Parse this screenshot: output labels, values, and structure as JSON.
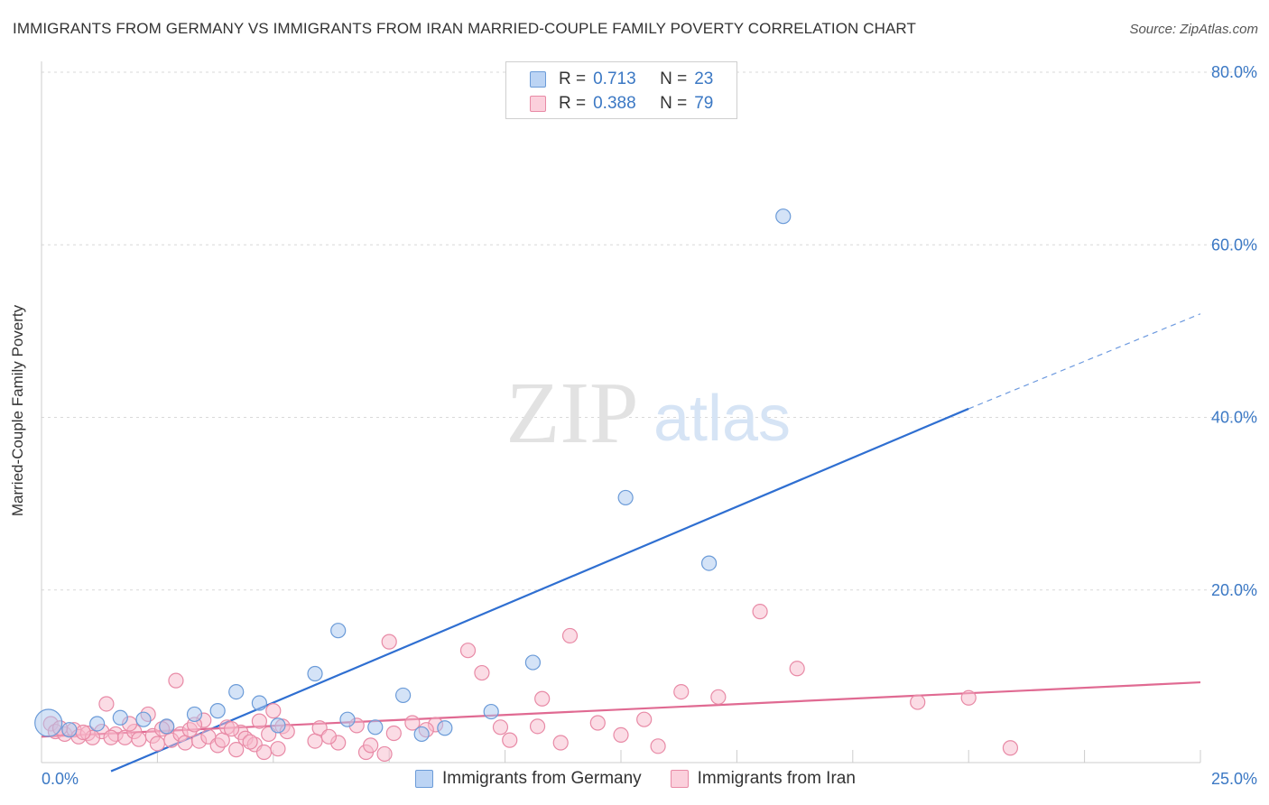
{
  "title": "IMMIGRANTS FROM GERMANY VS IMMIGRANTS FROM IRAN MARRIED-COUPLE FAMILY POVERTY CORRELATION CHART",
  "source": "Source: ZipAtlas.com",
  "watermark": {
    "zip": "ZIP",
    "atlas": "atlas"
  },
  "legend": {
    "r_label": "R =",
    "n_label": "N =",
    "rows": [
      {
        "r": "0.713",
        "n": "23",
        "color": "#a9c8f0"
      },
      {
        "r": "0.388",
        "n": "79",
        "color": "#f7b9cb"
      }
    ]
  },
  "bottom_legend": [
    "Immigrants from Germany",
    "Immigrants from Iran"
  ],
  "chart_data": {
    "type": "scatter",
    "title": "IMMIGRANTS FROM GERMANY VS IMMIGRANTS FROM IRAN MARRIED-COUPLE FAMILY POVERTY CORRELATION CHART",
    "xlabel": "",
    "ylabel": "Married-Couple Family Poverty",
    "xlim": [
      0,
      25
    ],
    "ylim": [
      0,
      80
    ],
    "x_tick_labels": [
      "0.0%",
      "25.0%"
    ],
    "y_tick_labels": [
      "20.0%",
      "40.0%",
      "60.0%",
      "80.0%"
    ],
    "y_ticks": [
      20,
      40,
      60,
      80
    ],
    "series": [
      {
        "name": "Immigrants from Germany",
        "color": "#6b9bd8",
        "fill": "#a9c8f0",
        "points": [
          [
            0.15,
            4.6
          ],
          [
            0.6,
            3.8
          ],
          [
            1.2,
            4.5
          ],
          [
            1.7,
            5.2
          ],
          [
            2.2,
            5.0
          ],
          [
            2.7,
            4.2
          ],
          [
            3.3,
            5.6
          ],
          [
            3.8,
            6.0
          ],
          [
            4.2,
            8.2
          ],
          [
            4.7,
            6.9
          ],
          [
            5.1,
            4.3
          ],
          [
            5.9,
            10.3
          ],
          [
            6.4,
            15.3
          ],
          [
            6.6,
            5.0
          ],
          [
            7.2,
            4.1
          ],
          [
            7.8,
            7.8
          ],
          [
            8.2,
            3.3
          ],
          [
            8.7,
            4.0
          ],
          [
            9.7,
            5.9
          ],
          [
            10.6,
            11.6
          ],
          [
            12.6,
            30.7
          ],
          [
            14.4,
            23.1
          ],
          [
            16.0,
            63.3
          ]
        ],
        "trend": {
          "x0": 1.5,
          "y0": -1.0,
          "x1": 20.0,
          "y1": 41.0,
          "dash_x1": 25.0,
          "dash_y1": 52.0,
          "color": "#2f6fd1"
        }
      },
      {
        "name": "Immigrants from Iran",
        "color": "#e88aa6",
        "fill": "#f7b9cb",
        "points": [
          [
            0.2,
            4.5
          ],
          [
            0.3,
            3.6
          ],
          [
            0.5,
            3.3
          ],
          [
            0.7,
            3.8
          ],
          [
            0.8,
            3.0
          ],
          [
            1.0,
            3.4
          ],
          [
            1.3,
            3.6
          ],
          [
            1.4,
            6.8
          ],
          [
            1.6,
            3.3
          ],
          [
            1.8,
            2.9
          ],
          [
            2.0,
            3.6
          ],
          [
            2.1,
            2.7
          ],
          [
            2.3,
            5.6
          ],
          [
            2.4,
            3.1
          ],
          [
            2.5,
            2.2
          ],
          [
            2.7,
            4.1
          ],
          [
            2.8,
            2.6
          ],
          [
            2.9,
            9.5
          ],
          [
            3.0,
            3.3
          ],
          [
            3.1,
            2.3
          ],
          [
            3.2,
            3.8
          ],
          [
            3.4,
            2.5
          ],
          [
            3.5,
            4.9
          ],
          [
            3.6,
            3.0
          ],
          [
            3.8,
            2.0
          ],
          [
            3.9,
            2.6
          ],
          [
            4.0,
            4.1
          ],
          [
            4.2,
            1.5
          ],
          [
            4.3,
            3.5
          ],
          [
            4.4,
            2.8
          ],
          [
            4.6,
            2.1
          ],
          [
            4.7,
            4.8
          ],
          [
            4.8,
            1.2
          ],
          [
            4.9,
            3.3
          ],
          [
            5.0,
            6.0
          ],
          [
            5.1,
            1.6
          ],
          [
            5.2,
            4.2
          ],
          [
            5.9,
            2.5
          ],
          [
            6.0,
            4.0
          ],
          [
            6.4,
            2.3
          ],
          [
            6.8,
            4.3
          ],
          [
            7.0,
            1.2
          ],
          [
            7.4,
            1.0
          ],
          [
            7.6,
            3.4
          ],
          [
            7.5,
            14.0
          ],
          [
            8.0,
            4.6
          ],
          [
            8.5,
            4.4
          ],
          [
            9.2,
            13.0
          ],
          [
            9.5,
            10.4
          ],
          [
            9.9,
            4.1
          ],
          [
            10.1,
            2.6
          ],
          [
            10.7,
            4.2
          ],
          [
            10.8,
            7.4
          ],
          [
            11.2,
            2.3
          ],
          [
            11.4,
            14.7
          ],
          [
            12.0,
            4.6
          ],
          [
            12.5,
            3.2
          ],
          [
            13.0,
            5.0
          ],
          [
            13.3,
            1.9
          ],
          [
            13.8,
            8.2
          ],
          [
            14.6,
            7.6
          ],
          [
            15.5,
            17.5
          ],
          [
            16.3,
            10.9
          ],
          [
            18.9,
            7.0
          ],
          [
            20.0,
            7.5
          ],
          [
            20.9,
            1.7
          ],
          [
            0.4,
            4.0
          ],
          [
            1.1,
            2.9
          ],
          [
            1.9,
            4.5
          ],
          [
            2.6,
            3.9
          ],
          [
            3.3,
            4.4
          ],
          [
            4.1,
            3.9
          ],
          [
            4.5,
            2.4
          ],
          [
            5.3,
            3.6
          ],
          [
            6.2,
            3.0
          ],
          [
            7.1,
            2.0
          ],
          [
            8.3,
            3.8
          ],
          [
            0.9,
            3.5
          ],
          [
            1.5,
            2.9
          ]
        ],
        "trend": {
          "x0": 0.0,
          "y0": 3.0,
          "x1": 25.0,
          "y1": 9.3,
          "color": "#e06a92"
        }
      }
    ],
    "grid": true,
    "legend_position": "top-center"
  }
}
